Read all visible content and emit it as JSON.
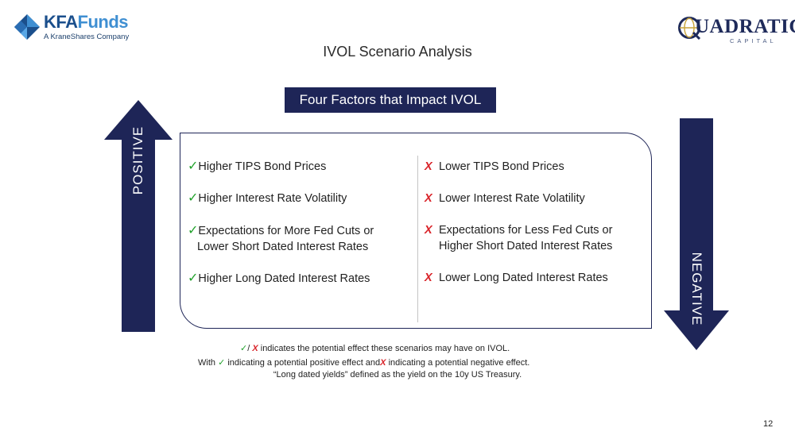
{
  "logos": {
    "left": {
      "brand_part1": "KFA",
      "brand_part2": "Funds",
      "tagline": "A KraneShares Company"
    },
    "right": {
      "name": "UADRATIC",
      "tagline": "CAPITAL"
    }
  },
  "slide_title": "IVOL Scenario Analysis",
  "factors_header": "Four Factors that Impact IVOL",
  "arrows": {
    "positive_label": "POSITIVE",
    "negative_label": "NEGATIVE"
  },
  "symbols": {
    "check": "✓",
    "cross": "X"
  },
  "positive_factors": [
    {
      "line1": "Higher TIPS Bond Prices"
    },
    {
      "line1": "Higher Interest Rate Volatility"
    },
    {
      "line1": "Expectations for More Fed Cuts or",
      "line2": "Lower Short Dated Interest Rates"
    },
    {
      "line1": "Higher Long Dated Interest Rates"
    }
  ],
  "negative_factors": [
    {
      "line1": "Lower TIPS Bond Prices"
    },
    {
      "line1": "Lower Interest Rate Volatility"
    },
    {
      "line1": "Expectations for Less Fed Cuts or",
      "line2": "Higher Short Dated Interest Rates"
    },
    {
      "line1": "Lower Long Dated Interest Rates"
    }
  ],
  "footnotes": {
    "line1_sep": "/",
    "line1_text": "indicates the potential effect these scenarios may have on IVOL.",
    "line2_prefix": "With",
    "line2_mid": "indicating a potential positive effect and",
    "line2_end": "indicating a potential negative effect.",
    "line3": "“Long dated yields” defined as the yield on the 10y US Treasury."
  },
  "page_number": "12",
  "colors": {
    "navy": "#1e2557",
    "check_green": "#22a22c",
    "cross_red": "#d9242a"
  }
}
